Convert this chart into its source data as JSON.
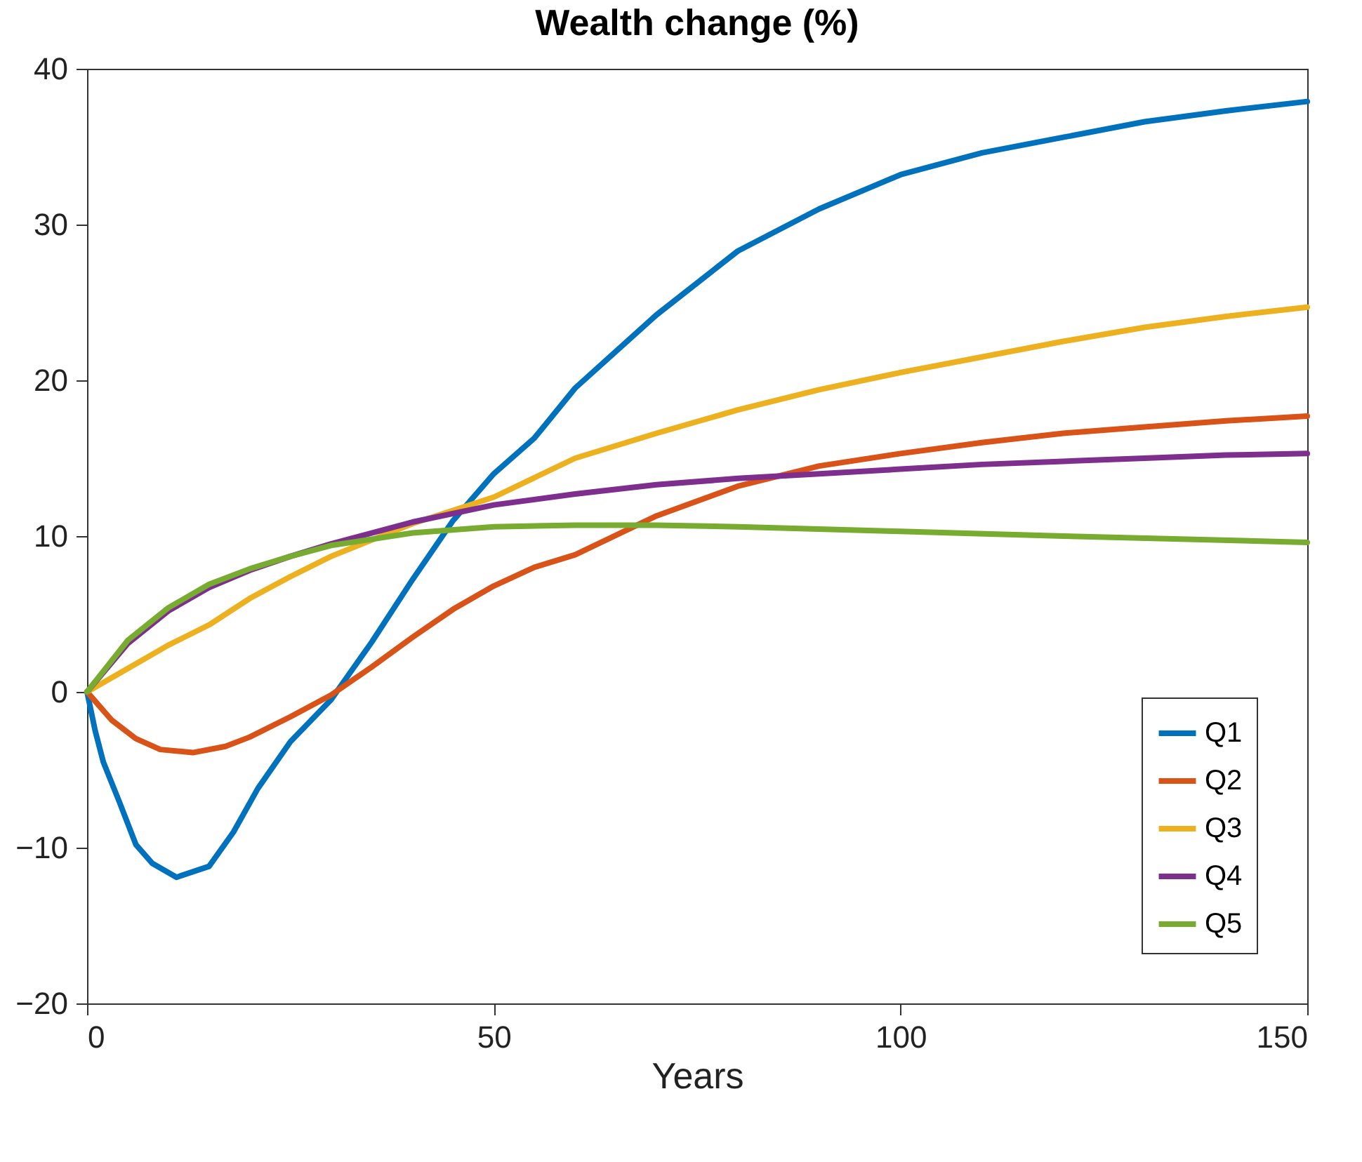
{
  "chart_data": {
    "type": "line",
    "title": "Wealth change (%)",
    "xlabel": "Years",
    "xlim": [
      0,
      150
    ],
    "xticks": [
      0,
      50,
      100,
      150
    ],
    "ylim": [
      -20,
      40
    ],
    "yticks": [
      -20,
      -10,
      0,
      10,
      20,
      30,
      40
    ],
    "grid": false,
    "legend": "bottom right",
    "line_style": "solid",
    "marker": "none",
    "series": [
      {
        "name": "Q1",
        "color": "#0072bd",
        "x": [
          0,
          1,
          2,
          4,
          6,
          8,
          11,
          15,
          18,
          21,
          25,
          30,
          35,
          40,
          45,
          50,
          55,
          60,
          70,
          80,
          90,
          100,
          110,
          120,
          130,
          140,
          150
        ],
        "values": [
          0,
          -2.5,
          -4.5,
          -7.1,
          -9.8,
          -11,
          -11.9,
          -11.2,
          -9,
          -6.2,
          -3.2,
          -0.5,
          3.2,
          7.2,
          11,
          14,
          16.3,
          19.5,
          24.2,
          28.3,
          31,
          33.2,
          34.6,
          35.6,
          36.6,
          37.3,
          37.9
        ]
      },
      {
        "name": "Q2",
        "color": "#d95319",
        "x": [
          0,
          3,
          6,
          9,
          13,
          17,
          20,
          25,
          30,
          35,
          40,
          45,
          50,
          55,
          60,
          70,
          80,
          90,
          100,
          110,
          120,
          130,
          140,
          150
        ],
        "values": [
          0,
          -1.8,
          -3,
          -3.7,
          -3.9,
          -3.5,
          -2.9,
          -1.6,
          -0.2,
          1.6,
          3.5,
          5.3,
          6.8,
          8,
          8.8,
          11.3,
          13.2,
          14.5,
          15.3,
          16,
          16.6,
          17,
          17.4,
          17.7
        ]
      },
      {
        "name": "Q3",
        "color": "#edb120",
        "x": [
          0,
          5,
          10,
          15,
          20,
          25,
          30,
          40,
          50,
          60,
          70,
          80,
          90,
          100,
          110,
          120,
          130,
          140,
          150
        ],
        "values": [
          0,
          1.5,
          3,
          4.3,
          6,
          7.4,
          8.7,
          10.8,
          12.5,
          15,
          16.6,
          18.1,
          19.4,
          20.5,
          21.5,
          22.5,
          23.4,
          24.1,
          24.7
        ]
      },
      {
        "name": "Q4",
        "color": "#7e2f8e",
        "x": [
          0,
          5,
          10,
          15,
          20,
          25,
          30,
          40,
          50,
          60,
          70,
          80,
          90,
          100,
          110,
          120,
          130,
          140,
          150
        ],
        "values": [
          0,
          3.1,
          5.2,
          6.7,
          7.8,
          8.7,
          9.5,
          10.9,
          12,
          12.7,
          13.3,
          13.7,
          14,
          14.3,
          14.6,
          14.8,
          15,
          15.2,
          15.3
        ]
      },
      {
        "name": "Q5",
        "color": "#77ac30",
        "x": [
          0,
          5,
          10,
          15,
          20,
          25,
          30,
          40,
          50,
          60,
          70,
          80,
          100,
          120,
          150
        ],
        "values": [
          0,
          3.3,
          5.4,
          6.9,
          7.9,
          8.7,
          9.4,
          10.2,
          10.6,
          10.7,
          10.7,
          10.6,
          10.3,
          10,
          9.6
        ]
      }
    ]
  }
}
